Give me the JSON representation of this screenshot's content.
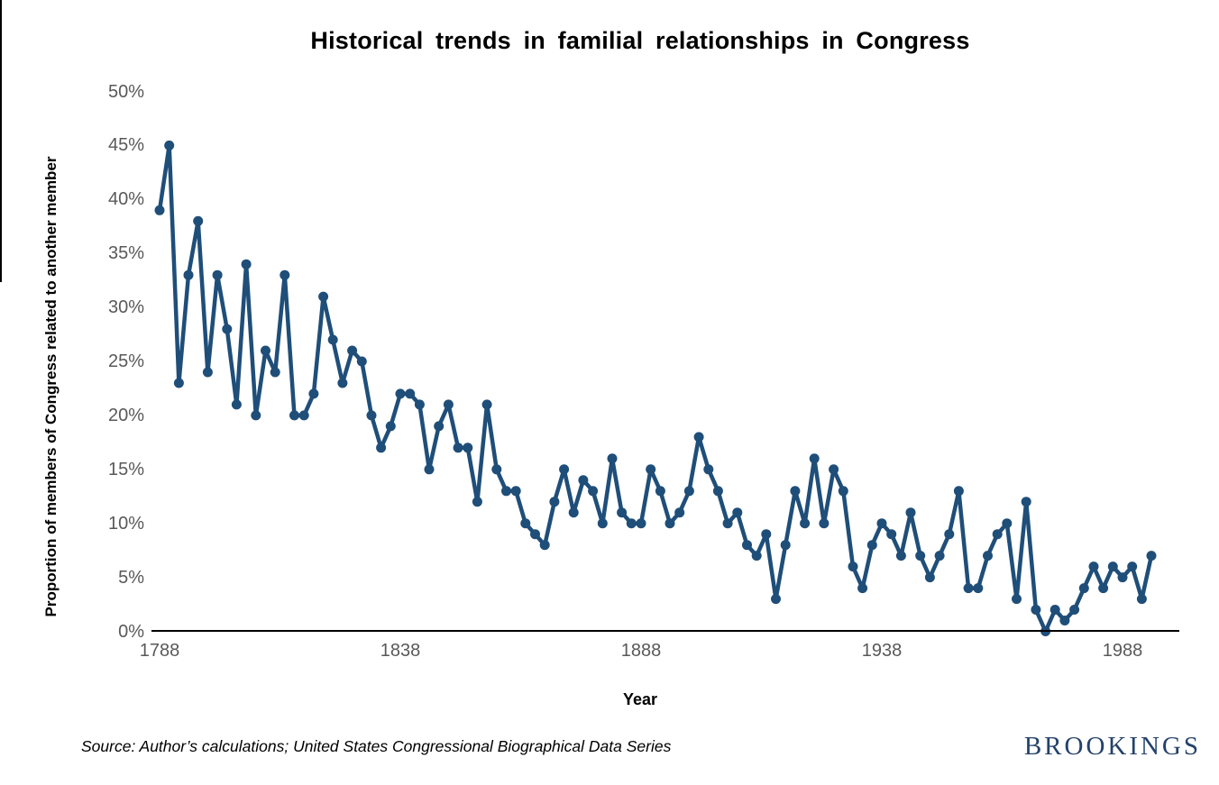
{
  "title": "Historical trends in familial relationships in Congress",
  "x_axis_title": "Year",
  "source_note": "Source: Author’s calculations; United States Congressional Biographical Data Series",
  "logo_text": "BROOKINGS",
  "colors": {
    "line": "#1f4e79",
    "marker": "#1f4e79",
    "axis": "#000000",
    "tick_labels": "#595959",
    "title": "#000000",
    "logo": "#24426b",
    "background": "#ffffff"
  },
  "chart_data": {
    "type": "line",
    "title": "Historical trends in familial relationships in Congress",
    "xlabel": "Year",
    "ylabel": "Proportion of members of Congress related to another member",
    "ylim": [
      0,
      50
    ],
    "y_unit": "%",
    "grid": false,
    "legend": "none",
    "marker": "circle",
    "yticks": [
      "0%",
      "5%",
      "10%",
      "15%",
      "20%",
      "25%",
      "30%",
      "35%",
      "40%",
      "45%",
      "50%"
    ],
    "xticks": [
      1788,
      1838,
      1888,
      1938,
      1988
    ],
    "x": [
      1788,
      1790,
      1792,
      1794,
      1796,
      1798,
      1800,
      1802,
      1804,
      1806,
      1808,
      1810,
      1812,
      1814,
      1816,
      1818,
      1820,
      1822,
      1824,
      1826,
      1828,
      1830,
      1832,
      1834,
      1836,
      1838,
      1840,
      1842,
      1844,
      1846,
      1848,
      1850,
      1852,
      1854,
      1856,
      1858,
      1860,
      1862,
      1864,
      1866,
      1868,
      1870,
      1872,
      1874,
      1876,
      1878,
      1880,
      1882,
      1884,
      1886,
      1888,
      1890,
      1892,
      1894,
      1896,
      1898,
      1900,
      1902,
      1904,
      1906,
      1908,
      1910,
      1912,
      1914,
      1916,
      1918,
      1920,
      1922,
      1924,
      1926,
      1928,
      1930,
      1932,
      1934,
      1936,
      1938,
      1940,
      1942,
      1944,
      1946,
      1948,
      1950,
      1952,
      1954,
      1956,
      1958,
      1960,
      1962,
      1964,
      1966,
      1968,
      1970,
      1972,
      1974,
      1976,
      1978,
      1980,
      1982,
      1984,
      1986,
      1988,
      1990,
      1992,
      1994
    ],
    "values": [
      39,
      45,
      23,
      33,
      38,
      24,
      33,
      28,
      21,
      34,
      20,
      26,
      24,
      33,
      20,
      20,
      22,
      31,
      27,
      23,
      26,
      25,
      20,
      17,
      19,
      22,
      22,
      21,
      15,
      19,
      21,
      17,
      17,
      12,
      21,
      15,
      13,
      13,
      10,
      9,
      8,
      12,
      15,
      11,
      14,
      13,
      10,
      16,
      11,
      10,
      10,
      15,
      13,
      10,
      11,
      13,
      18,
      15,
      13,
      10,
      11,
      8,
      7,
      9,
      3,
      8,
      13,
      10,
      16,
      10,
      15,
      13,
      6,
      4,
      8,
      10,
      9,
      7,
      11,
      7,
      5,
      7,
      9,
      13,
      4,
      4,
      7,
      9,
      10,
      3,
      12,
      2,
      0,
      2,
      1,
      2,
      4,
      6,
      4,
      6,
      5,
      6,
      3,
      7
    ]
  }
}
